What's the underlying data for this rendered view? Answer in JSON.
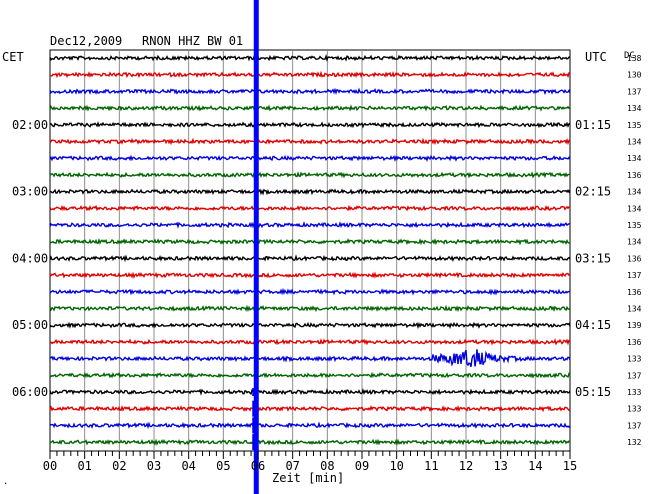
{
  "header": {
    "date": "Dec12,2009",
    "station": "RNON HHZ BW 01",
    "left_tz": "CET",
    "right_tz": "UTC",
    "dc_label": "DC"
  },
  "chart_data": {
    "type": "line",
    "xlabel": "Zeit [min]",
    "xlim": [
      0,
      15
    ],
    "x_ticks": [
      "00",
      "01",
      "02",
      "03",
      "04",
      "05",
      "06",
      "07",
      "08",
      "09",
      "10",
      "11",
      "12",
      "13",
      "14",
      "15"
    ],
    "rows": 24,
    "colors": [
      "#000000",
      "#e00000",
      "#0000e0",
      "#006400"
    ],
    "left_time_labels": [
      {
        "row": 4,
        "label": "02:00"
      },
      {
        "row": 8,
        "label": "03:00"
      },
      {
        "row": 12,
        "label": "04:00"
      },
      {
        "row": 16,
        "label": "05:00"
      },
      {
        "row": 20,
        "label": "06:00"
      }
    ],
    "right_time_labels": [
      {
        "row": 0,
        "label": "UTC"
      },
      {
        "row": 4,
        "label": "01:15"
      },
      {
        "row": 8,
        "label": "02:15"
      },
      {
        "row": 12,
        "label": "03:15"
      },
      {
        "row": 16,
        "label": "04:15"
      },
      {
        "row": 20,
        "label": "05:15"
      }
    ],
    "dc_values": [
      "138",
      "130",
      "137",
      "134",
      "135",
      "134",
      "134",
      "136",
      "134",
      "134",
      "135",
      "134",
      "136",
      "137",
      "136",
      "134",
      "139",
      "136",
      "133",
      "137",
      "133",
      "133",
      "137",
      "132"
    ],
    "highlight_line_x": 5.95,
    "events": [
      {
        "row": 18,
        "x_start": 11.0,
        "x_peak": 12.2,
        "x_end": 13.6
      }
    ],
    "bottom_mark": "."
  }
}
